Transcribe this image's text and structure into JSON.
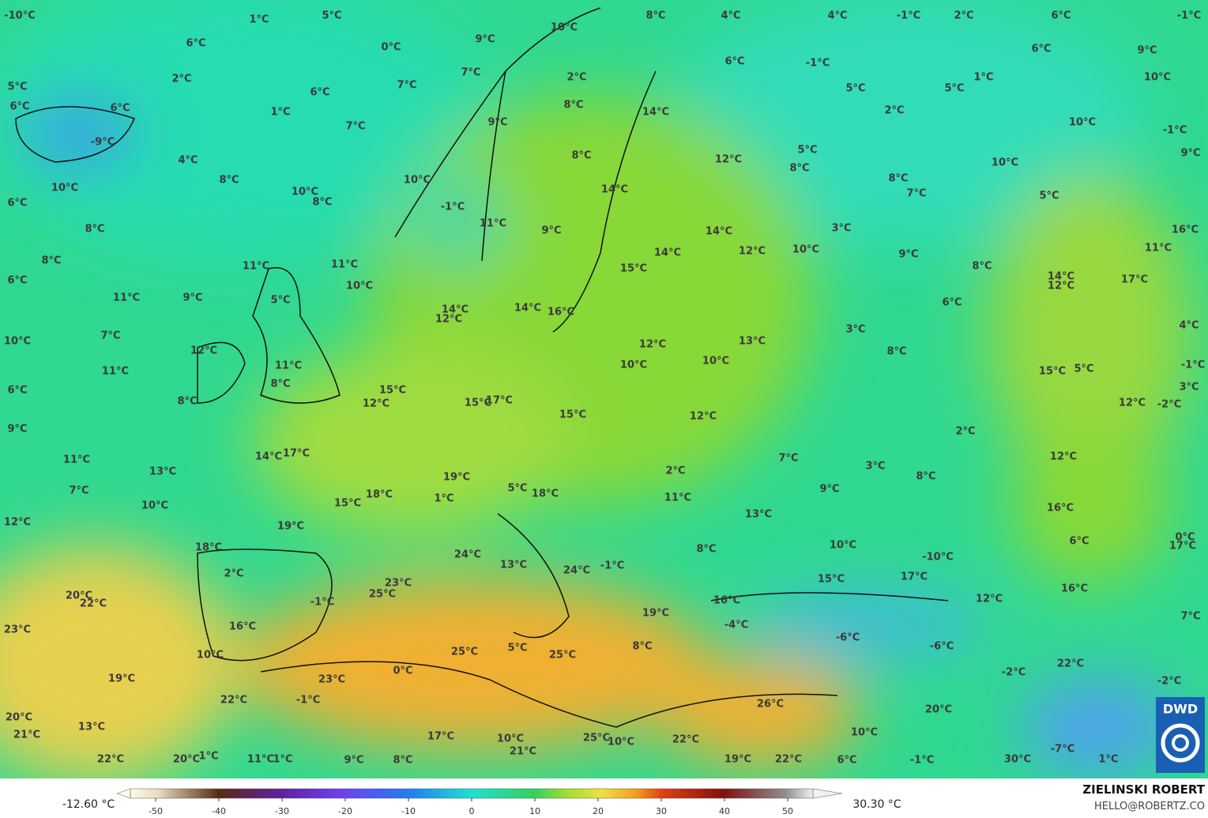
{
  "labels": [
    "-10°C",
    "1°C",
    "5°C",
    "6°C",
    "9°C",
    "0°C",
    "10°C",
    "8°C",
    "4°C",
    "4°C",
    "-1°C",
    "2°C",
    "6°C",
    "-1°C",
    "2°C",
    "5°C",
    "6°C",
    "6°C",
    "6°C",
    "7°C",
    "7°C",
    "2°C",
    "6°C",
    "-1°C",
    "6°C",
    "9°C",
    "1°C",
    "10°C",
    "1°C",
    "7°C",
    "9°C",
    "8°C",
    "14°C",
    "5°C",
    "5°C",
    "2°C",
    "10°C",
    "-1°C",
    "-9°C",
    "4°C",
    "8°C",
    "12°C",
    "5°C",
    "8°C",
    "10°C",
    "9°C",
    "10°C",
    "8°C",
    "10°C",
    "8°C",
    "10°C",
    "14°C",
    "8°C",
    "7°C",
    "5°C",
    "6°C",
    "-1°C",
    "8°C",
    "11°C",
    "9°C",
    "14°C",
    "3°C",
    "16°C",
    "12°C",
    "10°C",
    "14°C",
    "9°C",
    "11°C",
    "8°C",
    "11°C",
    "11°C",
    "15°C",
    "8°C",
    "14°C",
    "12°C",
    "17°C",
    "6°C",
    "10°C",
    "11°C",
    "9°C",
    "5°C",
    "14°C",
    "12°C",
    "14°C",
    "16°C",
    "6°C",
    "7°C",
    "10°C",
    "3°C",
    "4°C",
    "12°C",
    "13°C",
    "8°C",
    "12°C",
    "10°C",
    "10°C",
    "11°C",
    "11°C",
    "15°C",
    "5°C",
    "-1°C",
    "8°C",
    "6°C",
    "15°C",
    "8°C",
    "12°C",
    "15°C",
    "17°C",
    "3°C",
    "12°C",
    "-2°C",
    "15°C",
    "12°C",
    "9°C",
    "2°C",
    "11°C",
    "14°C",
    "17°C",
    "13°C",
    "7°C",
    "12°C",
    "3°C",
    "8°C",
    "19°C",
    "7°C",
    "2°C",
    "5°C",
    "18°C",
    "1°C",
    "18°C",
    "15°C",
    "11°C",
    "9°C",
    "16°C",
    "10°C",
    "12°C",
    "19°C",
    "13°C",
    "6°C",
    "0°C",
    "17°C",
    "18°C",
    "8°C",
    "10°C",
    "-10°C",
    "24°C",
    "13°C",
    "24°C",
    "-1°C",
    "2°C",
    "23°C",
    "25°C",
    "15°C",
    "17°C",
    "16°C",
    "16°C",
    "-1°C",
    "20°C",
    "22°C",
    "12°C",
    "19°C",
    "7°C",
    "23°C",
    "16°C",
    "-4°C",
    "-6°C",
    "-6°C",
    "8°C",
    "5°C",
    "25°C",
    "25°C",
    "10°C",
    "22°C",
    "-2°C",
    "0°C",
    "23°C",
    "19°C",
    "-2°C",
    "-1°C",
    "22°C",
    "26°C",
    "20°C",
    "20°C",
    "13°C",
    "21°C",
    "10°C",
    "17°C",
    "10°C",
    "21°C",
    "25°C",
    "10°C",
    "22°C",
    "-7°C",
    "22°C",
    "20°C",
    "1°C",
    "11°C",
    "1°C",
    "9°C",
    "8°C",
    "19°C",
    "22°C",
    "6°C",
    "-1°C",
    "30°C",
    "1°C"
  ],
  "colorbar": {
    "min_label": "-12.60 °C",
    "max_label": "30.30 °C",
    "lim": [
      -54,
      54
    ],
    "ticks": [
      -50,
      -40,
      -30,
      -20,
      -10,
      0,
      10,
      20,
      30,
      40,
      50
    ]
  },
  "credit": {
    "name": "ZIELINSKI ROBERT",
    "email": "HELLO@ROBERTZ.CO",
    "logo": "DWD"
  }
}
